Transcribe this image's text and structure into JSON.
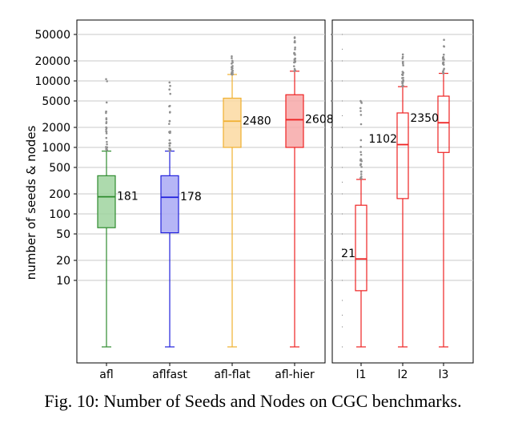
{
  "caption": "Fig. 10: Number of Seeds and Nodes on CGC benchmarks.",
  "chart_data": [
    {
      "type": "box",
      "ylabel": "number of seeds & nodes",
      "xlabel": "",
      "y_scale": "log",
      "ylim": [
        1,
        100000
      ],
      "yticks": [
        10,
        20,
        50,
        100,
        200,
        500,
        1000,
        2000,
        5000,
        10000,
        20000,
        50000
      ],
      "ytick_labels": [
        "10",
        "20",
        "50",
        "100",
        "200",
        "500",
        "1000",
        "2000",
        "5000",
        "10000",
        "20000",
        "50000"
      ],
      "grid": true,
      "categories": [
        "afl",
        "aflfast",
        "afl-flat",
        "afl-hier"
      ],
      "boxes": [
        {
          "name": "afl",
          "color": "#2e8b2e",
          "fill": "#9fd49f",
          "filled": true,
          "whisker_low": 1,
          "q1": 62,
          "median": 181,
          "q3": 375,
          "whisker_high": 880,
          "outlier_max": 13000,
          "median_label": "181"
        },
        {
          "name": "aflfast",
          "color": "#2020dd",
          "fill": "#a9a9f5",
          "filled": true,
          "whisker_low": 1,
          "q1": 52,
          "median": 178,
          "q3": 375,
          "whisker_high": 880,
          "outlier_max": 11500,
          "median_label": "178"
        },
        {
          "name": "afl-flat",
          "color": "#f0b030",
          "fill": "#fbd9a1",
          "filled": true,
          "whisker_low": 1,
          "q1": 1000,
          "median": 2480,
          "q3": 5500,
          "whisker_high": 12500,
          "outlier_max": 29000,
          "median_label": "2480"
        },
        {
          "name": "afl-hier",
          "color": "#ee2222",
          "fill": "#f7a8a8",
          "filled": true,
          "whisker_low": 1,
          "q1": 1000,
          "median": 2608,
          "q3": 6200,
          "whisker_high": 14000,
          "outlier_max": 48000,
          "median_label": "2608"
        }
      ]
    },
    {
      "type": "box",
      "y_scale": "log",
      "ylim": [
        1,
        100000
      ],
      "categories": [
        "l1",
        "l2",
        "l3"
      ],
      "boxes": [
        {
          "name": "l1",
          "color": "#ee2222",
          "fill": "none",
          "filled": false,
          "whisker_low": 1,
          "q1": 7,
          "median": 21,
          "q3": 135,
          "whisker_high": 330,
          "outlier_max": 8500,
          "median_label": "21"
        },
        {
          "name": "l2",
          "color": "#ee2222",
          "fill": "none",
          "filled": false,
          "whisker_low": 1,
          "q1": 170,
          "median": 1102,
          "q3": 3300,
          "whisker_high": 8200,
          "outlier_max": 27000,
          "median_label": "1102"
        },
        {
          "name": "l3",
          "color": "#ee2222",
          "fill": "none",
          "filled": false,
          "whisker_low": 1,
          "q1": 840,
          "median": 2350,
          "q3": 5900,
          "whisker_high": 13000,
          "outlier_max": 45000,
          "median_label": "2350"
        }
      ]
    }
  ]
}
